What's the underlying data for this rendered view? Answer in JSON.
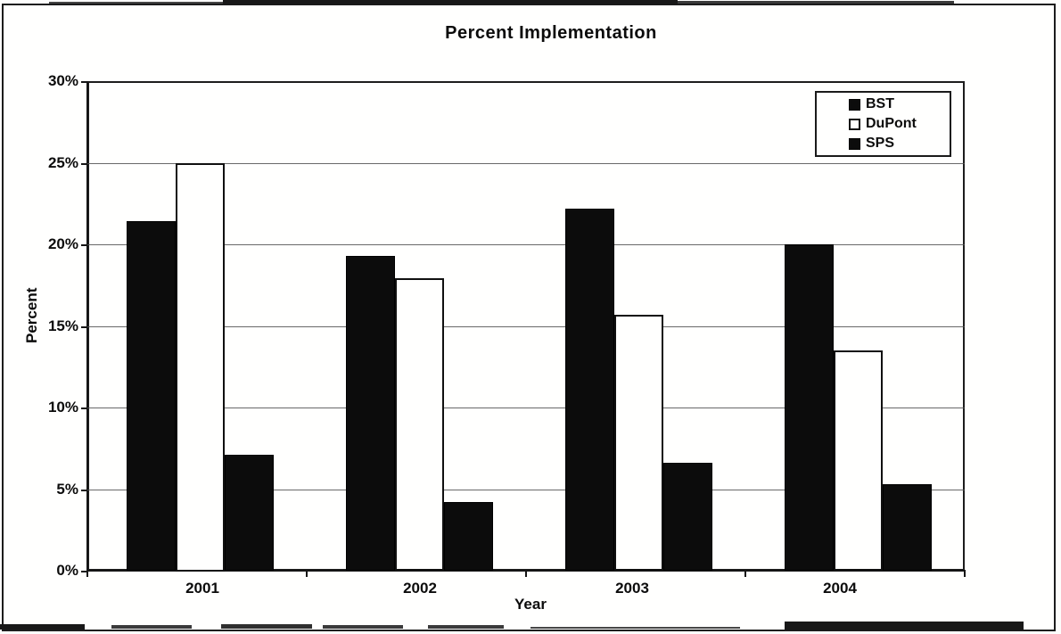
{
  "title": "Percent Implementation",
  "chart_data": {
    "type": "bar",
    "title": "Percent Implementation",
    "xlabel": "Year",
    "ylabel": "Percent",
    "categories": [
      "2001",
      "2002",
      "2003",
      "2004"
    ],
    "series": [
      {
        "name": "BST",
        "fill": "black",
        "values": [
          21.4,
          19.3,
          22.2,
          20.0
        ]
      },
      {
        "name": "DuPont",
        "fill": "white",
        "values": [
          25.0,
          17.9,
          15.7,
          13.5
        ]
      },
      {
        "name": "SPS",
        "fill": "black",
        "values": [
          7.1,
          4.2,
          6.6,
          5.3
        ]
      }
    ],
    "ylim": [
      0,
      30
    ],
    "ytick_step": 5,
    "ytick_labels": [
      "0%",
      "5%",
      "10%",
      "15%",
      "20%",
      "25%",
      "30%"
    ],
    "grid": true,
    "legend_position": "top-right",
    "colors": {
      "bar_black": "#0c0c0c",
      "bar_white": "#ffffff",
      "ink": "#111111"
    }
  },
  "legend": {
    "items": [
      {
        "label": "BST",
        "swatch": "black"
      },
      {
        "label": "DuPont",
        "swatch": "white"
      },
      {
        "label": "SPS",
        "swatch": "black"
      }
    ]
  }
}
